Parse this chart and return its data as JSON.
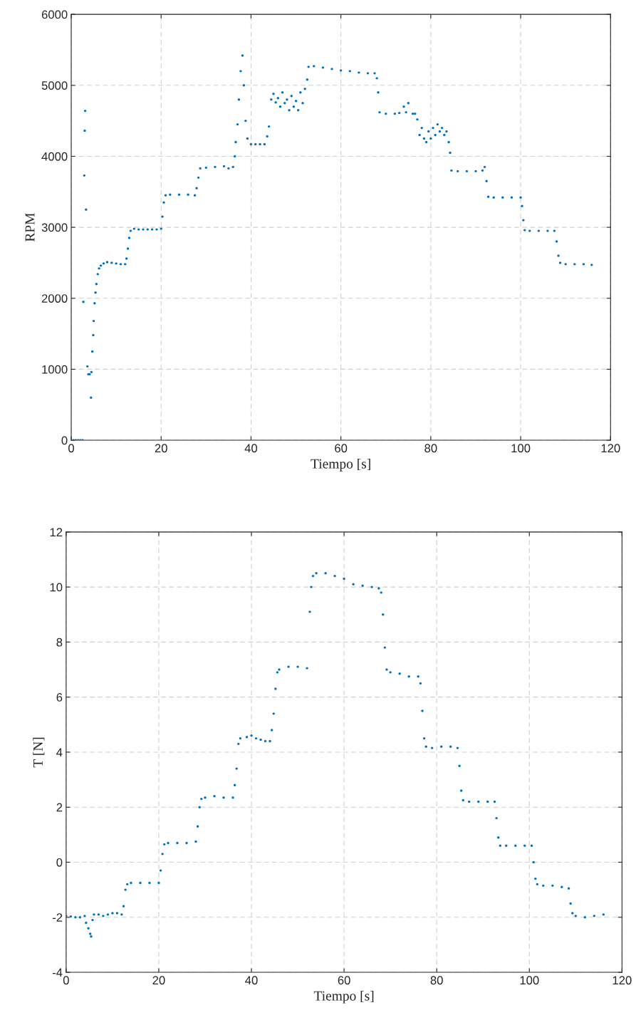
{
  "chart_data": [
    {
      "type": "scatter",
      "xlabel": "Tiempo [s]",
      "ylabel": "RPM",
      "color": "#0072bd",
      "marker": "circle",
      "grid": true,
      "xlim": [
        0,
        120
      ],
      "ylim": [
        0,
        6000
      ],
      "xticks": [
        0,
        20,
        40,
        60,
        80,
        100,
        120
      ],
      "yticks": [
        0,
        1000,
        2000,
        3000,
        4000,
        5000,
        6000
      ],
      "x": [
        0,
        0.5,
        1,
        1.5,
        2,
        2.5,
        2.7,
        2.9,
        3.0,
        3.1,
        3.3,
        3.6,
        3.8,
        4.1,
        4.4,
        4.5,
        4.7,
        4.9,
        5.0,
        5.2,
        5.4,
        5.6,
        5.9,
        6.2,
        6.6,
        7.2,
        8,
        9,
        10,
        11,
        12,
        12.3,
        12.6,
        12.9,
        13.2,
        14,
        15,
        16,
        17,
        18,
        19,
        20,
        20.3,
        20.6,
        21,
        22,
        24,
        26,
        27.5,
        27.9,
        28.3,
        28.7,
        30,
        32,
        34,
        35,
        36,
        36.4,
        36.6,
        37,
        37.3,
        37.7,
        38.1,
        38.4,
        38.8,
        39.2,
        40,
        41,
        42,
        43,
        43.6,
        44,
        44.5,
        45,
        45.5,
        46,
        46.5,
        47,
        47.5,
        48,
        48.5,
        49,
        49.5,
        50,
        50.5,
        51,
        51.5,
        52,
        52.5,
        52.8,
        54,
        56,
        58,
        60,
        62,
        64,
        66,
        67.5,
        68,
        68.3,
        68.6,
        70,
        72,
        73,
        74,
        74.5,
        75,
        76,
        76.5,
        77,
        77.5,
        78,
        78.5,
        79,
        79.5,
        80,
        80.5,
        81,
        81.5,
        82,
        82.5,
        83,
        83.5,
        84,
        84.3,
        84.6,
        86,
        88,
        90,
        91.5,
        92,
        92.4,
        92.8,
        94,
        96,
        98,
        100,
        100.3,
        100.6,
        100.9,
        102,
        104,
        106,
        107.5,
        108,
        108.4,
        108.8,
        110,
        112,
        114,
        115.8
      ],
      "values": [
        0,
        0,
        0,
        0,
        0,
        0,
        1950,
        3730,
        4360,
        4640,
        3250,
        1040,
        930,
        930,
        600,
        960,
        1250,
        1480,
        1680,
        1930,
        2080,
        2200,
        2340,
        2420,
        2460,
        2490,
        2510,
        2500,
        2490,
        2480,
        2480,
        2560,
        2700,
        2850,
        2950,
        2980,
        2970,
        2970,
        2970,
        2970,
        2970,
        2980,
        3150,
        3350,
        3450,
        3460,
        3460,
        3460,
        3450,
        3550,
        3700,
        3830,
        3840,
        3850,
        3860,
        3830,
        3850,
        4000,
        4200,
        4450,
        4800,
        5200,
        5420,
        5000,
        4500,
        4250,
        4170,
        4170,
        4170,
        4170,
        4280,
        4420,
        4800,
        4880,
        4760,
        4820,
        4700,
        4900,
        4750,
        4800,
        4650,
        4850,
        4700,
        4780,
        4650,
        4900,
        4750,
        4950,
        5080,
        5260,
        5270,
        5250,
        5230,
        5210,
        5200,
        5180,
        5170,
        5170,
        5100,
        4900,
        4620,
        4600,
        4600,
        4610,
        4700,
        4620,
        4750,
        4600,
        4600,
        4520,
        4300,
        4400,
        4250,
        4200,
        4350,
        4250,
        4400,
        4300,
        4450,
        4350,
        4400,
        4300,
        4350,
        4200,
        4050,
        3800,
        3790,
        3790,
        3790,
        3800,
        3850,
        3650,
        3430,
        3420,
        3420,
        3420,
        3420,
        3300,
        3100,
        2960,
        2950,
        2950,
        2950,
        2950,
        2800,
        2600,
        2500,
        2480,
        2480,
        2480,
        2470
      ]
    },
    {
      "type": "scatter",
      "xlabel": "Tiempo [s]",
      "ylabel": "T [N]",
      "color": "#0072bd",
      "marker": "circle",
      "grid": true,
      "xlim": [
        0,
        120
      ],
      "ylim": [
        -4,
        12
      ],
      "xticks": [
        0,
        20,
        40,
        60,
        80,
        100,
        120
      ],
      "yticks": [
        -4,
        -2,
        0,
        2,
        4,
        6,
        8,
        10,
        12
      ],
      "x": [
        0,
        1,
        2,
        3,
        4,
        4.3,
        4.8,
        5.2,
        5.4,
        5.7,
        6,
        7,
        8,
        9,
        10,
        11,
        12,
        12.4,
        12.8,
        13.2,
        14,
        16,
        18,
        20,
        20.4,
        20.8,
        21.2,
        22,
        24,
        26,
        28,
        28.4,
        28.8,
        29.2,
        30,
        32,
        34,
        36,
        36.4,
        36.8,
        37.2,
        37.6,
        39,
        40,
        41,
        42,
        43,
        44,
        44.4,
        44.8,
        45.2,
        45.6,
        46,
        48,
        50,
        52,
        52.6,
        52.9,
        53.3,
        54,
        56,
        58,
        60,
        62,
        64,
        66,
        67.5,
        68,
        68.4,
        68.8,
        69.2,
        70,
        72,
        74,
        76,
        76.5,
        76.9,
        77.3,
        77.7,
        79,
        81,
        83,
        84.5,
        84.9,
        85.3,
        85.7,
        87,
        89,
        91,
        92.5,
        92.9,
        93.3,
        93.7,
        95,
        97,
        99,
        100.5,
        100.9,
        101.3,
        101.7,
        103,
        105,
        107,
        108.5,
        108.9,
        109.3,
        110,
        112,
        114,
        116
      ],
      "values": [
        -1.95,
        -1.97,
        -2.0,
        -2.0,
        -1.95,
        -2.2,
        -2.4,
        -2.6,
        -2.7,
        -2.1,
        -1.9,
        -1.9,
        -1.95,
        -1.9,
        -1.85,
        -1.85,
        -1.9,
        -1.6,
        -1.0,
        -0.8,
        -0.75,
        -0.75,
        -0.75,
        -0.75,
        -0.3,
        0.3,
        0.65,
        0.7,
        0.7,
        0.7,
        0.75,
        1.3,
        2.0,
        2.3,
        2.35,
        2.4,
        2.35,
        2.35,
        2.8,
        3.4,
        4.3,
        4.5,
        4.55,
        4.6,
        4.5,
        4.45,
        4.4,
        4.4,
        4.8,
        5.4,
        6.3,
        6.9,
        7.0,
        7.1,
        7.1,
        7.05,
        9.1,
        10.0,
        10.4,
        10.5,
        10.5,
        10.4,
        10.3,
        10.1,
        10.05,
        10.0,
        9.95,
        9.8,
        9.0,
        7.8,
        7.0,
        6.9,
        6.85,
        6.75,
        6.75,
        6.5,
        5.5,
        4.5,
        4.2,
        4.15,
        4.2,
        4.2,
        4.15,
        3.5,
        2.6,
        2.25,
        2.2,
        2.2,
        2.2,
        2.2,
        1.6,
        0.9,
        0.6,
        0.6,
        0.6,
        0.6,
        0.6,
        0.0,
        -0.6,
        -0.8,
        -0.85,
        -0.85,
        -0.9,
        -0.95,
        -1.5,
        -1.85,
        -1.95,
        -2.0,
        -1.95,
        -1.9
      ]
    }
  ]
}
